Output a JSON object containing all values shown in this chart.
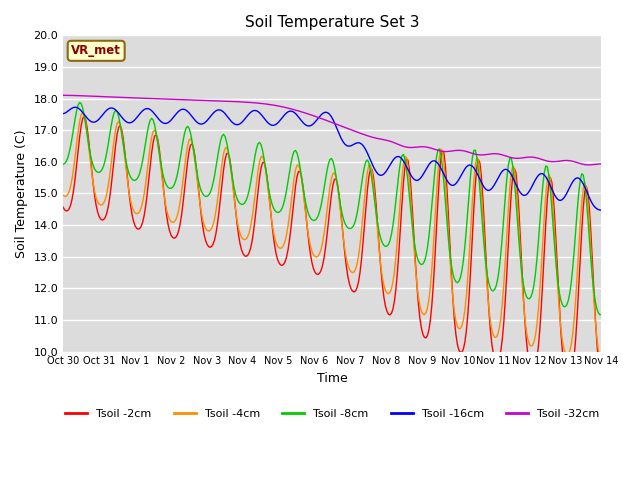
{
  "title": "Soil Temperature Set 3",
  "xlabel": "Time",
  "ylabel": "Soil Temperature (C)",
  "ylim": [
    10.0,
    20.0
  ],
  "yticks": [
    10.0,
    11.0,
    12.0,
    13.0,
    14.0,
    15.0,
    16.0,
    17.0,
    18.0,
    19.0,
    20.0
  ],
  "plot_bg_color": "#dcdcdc",
  "grid_color": "#ffffff",
  "annotation_text": "VR_met",
  "annotation_box_color": "#ffffcc",
  "annotation_border_color": "#8b6914",
  "series_colors": [
    "#ff0000",
    "#ff8c00",
    "#00cc00",
    "#0000ff",
    "#cc00cc"
  ],
  "series_labels": [
    "Tsoil -2cm",
    "Tsoil -4cm",
    "Tsoil -8cm",
    "Tsoil -16cm",
    "Tsoil -32cm"
  ],
  "xtick_labels": [
    "Oct 30",
    "Oct 31",
    "Nov 1",
    "Nov 2",
    "Nov 3",
    "Nov 4",
    "Nov 5",
    "Nov 6",
    "Nov 7",
    "Nov 8",
    "Nov 9",
    "Nov 10",
    "Nov 11",
    "Nov 12",
    "Nov 13",
    "Nov 14"
  ]
}
